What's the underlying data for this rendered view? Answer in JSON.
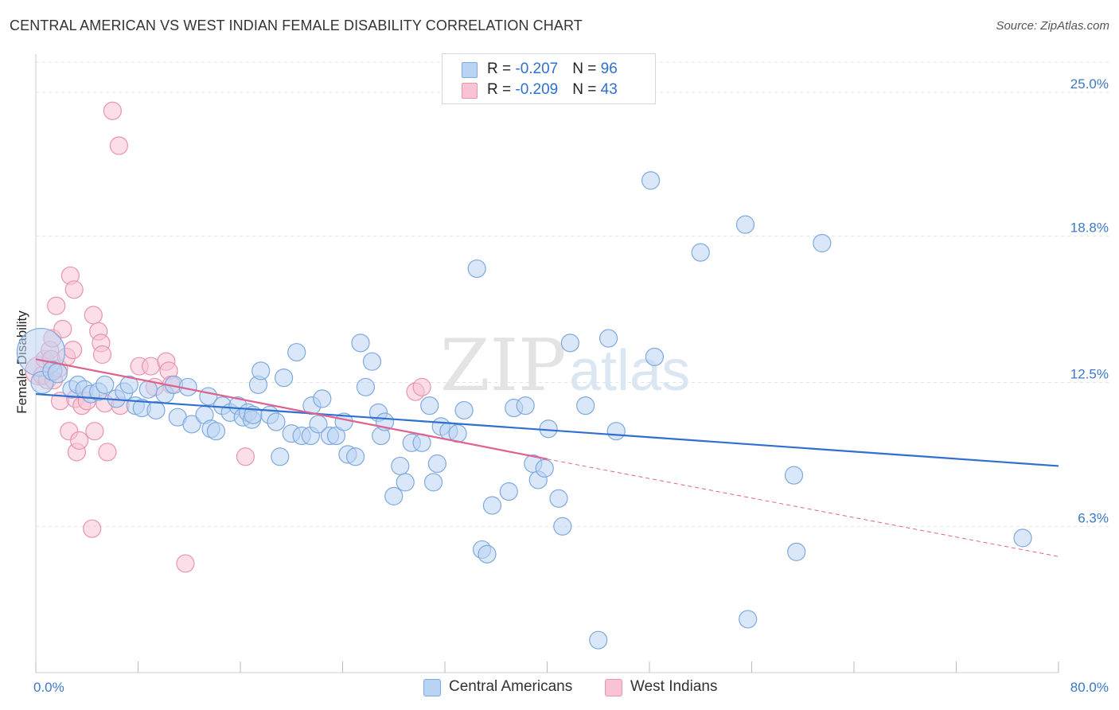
{
  "title": "CENTRAL AMERICAN VS WEST INDIAN FEMALE DISABILITY CORRELATION CHART",
  "source": "Source: ZipAtlas.com",
  "watermark": {
    "zip": "ZIP",
    "atlas": "atlas"
  },
  "legend": {
    "rows": [
      {
        "r_label": "R = ",
        "r_value": "-0.207",
        "n_label": "N = ",
        "n_value": "96"
      },
      {
        "r_label": "R = ",
        "r_value": "-0.209",
        "n_label": "N = ",
        "n_value": "43"
      }
    ]
  },
  "bottom_legend": {
    "blue": "Central Americans",
    "pink": "West Indians"
  },
  "colors": {
    "blue_fill": "#b9d3f2",
    "blue_stroke": "#7ea9de",
    "blue_line": "#2f6fd0",
    "pink_fill": "#f8c3d3",
    "pink_stroke": "#e993b0",
    "pink_line": "#e0608e",
    "grid": "#e2e2e2",
    "tick_text": "#3a78c8"
  },
  "chart_data": {
    "type": "scatter",
    "title": "CENTRAL AMERICAN VS WEST INDIAN FEMALE DISABILITY CORRELATION CHART",
    "xlabel": "",
    "ylabel": "Female Disability",
    "xlim": [
      0,
      80
    ],
    "ylim": [
      0,
      26.3
    ],
    "x_tick_labels": [
      {
        "value": 0,
        "label": "0.0%"
      },
      {
        "value": 80,
        "label": "80.0%"
      }
    ],
    "x_minor_ticks": [
      0,
      8,
      16,
      24,
      32,
      40,
      48,
      56,
      64,
      72,
      80
    ],
    "y_ticks": [
      {
        "value": 6.3,
        "label": "6.3%"
      },
      {
        "value": 12.5,
        "label": "12.5%"
      },
      {
        "value": 18.8,
        "label": "18.8%"
      },
      {
        "value": 25.0,
        "label": "25.0%"
      }
    ],
    "series": [
      {
        "name": "Central Americans",
        "r": -0.207,
        "n": 96,
        "trend": {
          "x0": 0,
          "y0": 12.0,
          "x1": 80,
          "y1": 8.9
        },
        "points": [
          [
            0.4,
            13.8,
            30
          ],
          [
            0.5,
            12.5,
            14
          ],
          [
            1.3,
            13.0,
            12
          ],
          [
            1.7,
            12.9,
            12
          ],
          [
            2.8,
            12.2,
            11
          ],
          [
            3.3,
            12.4,
            11
          ],
          [
            3.8,
            12.2,
            11
          ],
          [
            4.3,
            12.0,
            11
          ],
          [
            4.9,
            12.1,
            11
          ],
          [
            5.4,
            12.4,
            11
          ],
          [
            6.3,
            11.8,
            11
          ],
          [
            6.9,
            12.1,
            11
          ],
          [
            7.3,
            12.4,
            11
          ],
          [
            7.8,
            11.5,
            11
          ],
          [
            8.3,
            11.4,
            11
          ],
          [
            8.8,
            12.2,
            11
          ],
          [
            9.4,
            11.3,
            11
          ],
          [
            10.1,
            12.0,
            11
          ],
          [
            10.8,
            12.4,
            11
          ],
          [
            11.1,
            11.0,
            11
          ],
          [
            11.9,
            12.3,
            11
          ],
          [
            12.2,
            10.7,
            11
          ],
          [
            13.2,
            11.1,
            11
          ],
          [
            13.5,
            11.9,
            11
          ],
          [
            13.7,
            10.5,
            11
          ],
          [
            14.1,
            10.4,
            11
          ],
          [
            14.6,
            11.5,
            11
          ],
          [
            15.2,
            11.2,
            11
          ],
          [
            15.8,
            11.5,
            11
          ],
          [
            16.2,
            11.0,
            11
          ],
          [
            16.6,
            11.2,
            11
          ],
          [
            16.9,
            10.9,
            11
          ],
          [
            17.0,
            11.1,
            11
          ],
          [
            17.4,
            12.4,
            11
          ],
          [
            17.6,
            13.0,
            11
          ],
          [
            18.3,
            11.1,
            11
          ],
          [
            18.8,
            10.8,
            11
          ],
          [
            19.1,
            9.3,
            11
          ],
          [
            19.4,
            12.7,
            11
          ],
          [
            20.0,
            10.3,
            11
          ],
          [
            20.4,
            13.8,
            11
          ],
          [
            20.8,
            10.2,
            11
          ],
          [
            21.5,
            10.2,
            11
          ],
          [
            21.6,
            11.5,
            11
          ],
          [
            22.1,
            10.7,
            11
          ],
          [
            22.4,
            11.8,
            11
          ],
          [
            23.0,
            10.2,
            11
          ],
          [
            23.5,
            10.2,
            11
          ],
          [
            24.1,
            10.8,
            11
          ],
          [
            24.4,
            9.4,
            11
          ],
          [
            25.0,
            9.3,
            11
          ],
          [
            25.4,
            14.2,
            11
          ],
          [
            25.8,
            12.3,
            11
          ],
          [
            26.3,
            13.4,
            11
          ],
          [
            26.8,
            11.2,
            11
          ],
          [
            27.0,
            10.2,
            11
          ],
          [
            27.3,
            10.8,
            11
          ],
          [
            28.0,
            7.6,
            11
          ],
          [
            28.5,
            8.9,
            11
          ],
          [
            28.9,
            8.2,
            11
          ],
          [
            29.4,
            9.9,
            11
          ],
          [
            30.2,
            9.9,
            11
          ],
          [
            30.8,
            11.5,
            11
          ],
          [
            31.1,
            8.2,
            11
          ],
          [
            31.4,
            9.0,
            11
          ],
          [
            31.7,
            10.6,
            11
          ],
          [
            32.3,
            10.4,
            11
          ],
          [
            33.0,
            10.3,
            11
          ],
          [
            33.5,
            11.3,
            11
          ],
          [
            34.5,
            17.4,
            11
          ],
          [
            34.9,
            5.3,
            11
          ],
          [
            35.3,
            5.1,
            11
          ],
          [
            35.7,
            7.2,
            11
          ],
          [
            37.0,
            7.8,
            11
          ],
          [
            37.4,
            11.4,
            11
          ],
          [
            38.3,
            11.5,
            11
          ],
          [
            38.9,
            9.0,
            11
          ],
          [
            39.3,
            8.3,
            11
          ],
          [
            39.8,
            8.8,
            11
          ],
          [
            40.1,
            10.5,
            11
          ],
          [
            40.9,
            7.5,
            11
          ],
          [
            41.2,
            6.3,
            11
          ],
          [
            41.8,
            14.2,
            11
          ],
          [
            43.0,
            11.5,
            11
          ],
          [
            44.8,
            14.4,
            11
          ],
          [
            45.4,
            10.4,
            11
          ],
          [
            48.4,
            13.6,
            11
          ],
          [
            48.1,
            21.2,
            11
          ],
          [
            52.0,
            18.1,
            11
          ],
          [
            55.5,
            19.3,
            11
          ],
          [
            55.7,
            2.3,
            11
          ],
          [
            59.3,
            8.5,
            11
          ],
          [
            59.5,
            5.2,
            11
          ],
          [
            61.5,
            18.5,
            11
          ],
          [
            44.0,
            1.4,
            11
          ],
          [
            77.2,
            5.8,
            11
          ]
        ]
      },
      {
        "name": "West Indians",
        "r": -0.209,
        "n": 43,
        "trend": {
          "x0": 0,
          "y0": 13.5,
          "x1": 40,
          "y1": 9.2
        },
        "trend_dashed": {
          "x0": 40,
          "y0": 9.2,
          "x1": 80,
          "y1": 5.0
        },
        "points": [
          [
            0.3,
            13.0,
            18
          ],
          [
            0.5,
            12.8,
            11
          ],
          [
            0.7,
            13.5,
            11
          ],
          [
            0.9,
            12.6,
            11
          ],
          [
            1.1,
            13.9,
            11
          ],
          [
            1.2,
            13.5,
            11
          ],
          [
            1.3,
            14.4,
            11
          ],
          [
            1.4,
            12.6,
            11
          ],
          [
            1.6,
            15.8,
            11
          ],
          [
            1.8,
            13.1,
            11
          ],
          [
            1.9,
            11.7,
            11
          ],
          [
            2.1,
            14.8,
            11
          ],
          [
            2.4,
            13.6,
            11
          ],
          [
            2.6,
            10.4,
            11
          ],
          [
            2.7,
            17.1,
            11
          ],
          [
            2.9,
            13.9,
            11
          ],
          [
            3.0,
            16.5,
            11
          ],
          [
            3.1,
            11.8,
            11
          ],
          [
            3.2,
            9.5,
            11
          ],
          [
            3.4,
            10.0,
            11
          ],
          [
            3.6,
            11.5,
            11
          ],
          [
            4.0,
            11.7,
            11
          ],
          [
            4.4,
            6.2,
            11
          ],
          [
            4.5,
            15.4,
            11
          ],
          [
            4.6,
            10.4,
            11
          ],
          [
            4.9,
            14.7,
            11
          ],
          [
            5.1,
            14.2,
            11
          ],
          [
            5.2,
            13.7,
            11
          ],
          [
            5.4,
            11.6,
            11
          ],
          [
            5.6,
            9.5,
            11
          ],
          [
            6.0,
            24.2,
            11
          ],
          [
            6.5,
            22.7,
            11
          ],
          [
            6.6,
            11.5,
            11
          ],
          [
            8.1,
            13.2,
            11
          ],
          [
            9.0,
            13.2,
            11
          ],
          [
            9.3,
            12.3,
            11
          ],
          [
            10.2,
            13.4,
            11
          ],
          [
            10.4,
            13.0,
            11
          ],
          [
            10.6,
            12.4,
            11
          ],
          [
            11.7,
            4.7,
            11
          ],
          [
            16.4,
            9.3,
            11
          ],
          [
            29.7,
            12.1,
            11
          ],
          [
            30.2,
            12.3,
            11
          ]
        ]
      }
    ]
  }
}
